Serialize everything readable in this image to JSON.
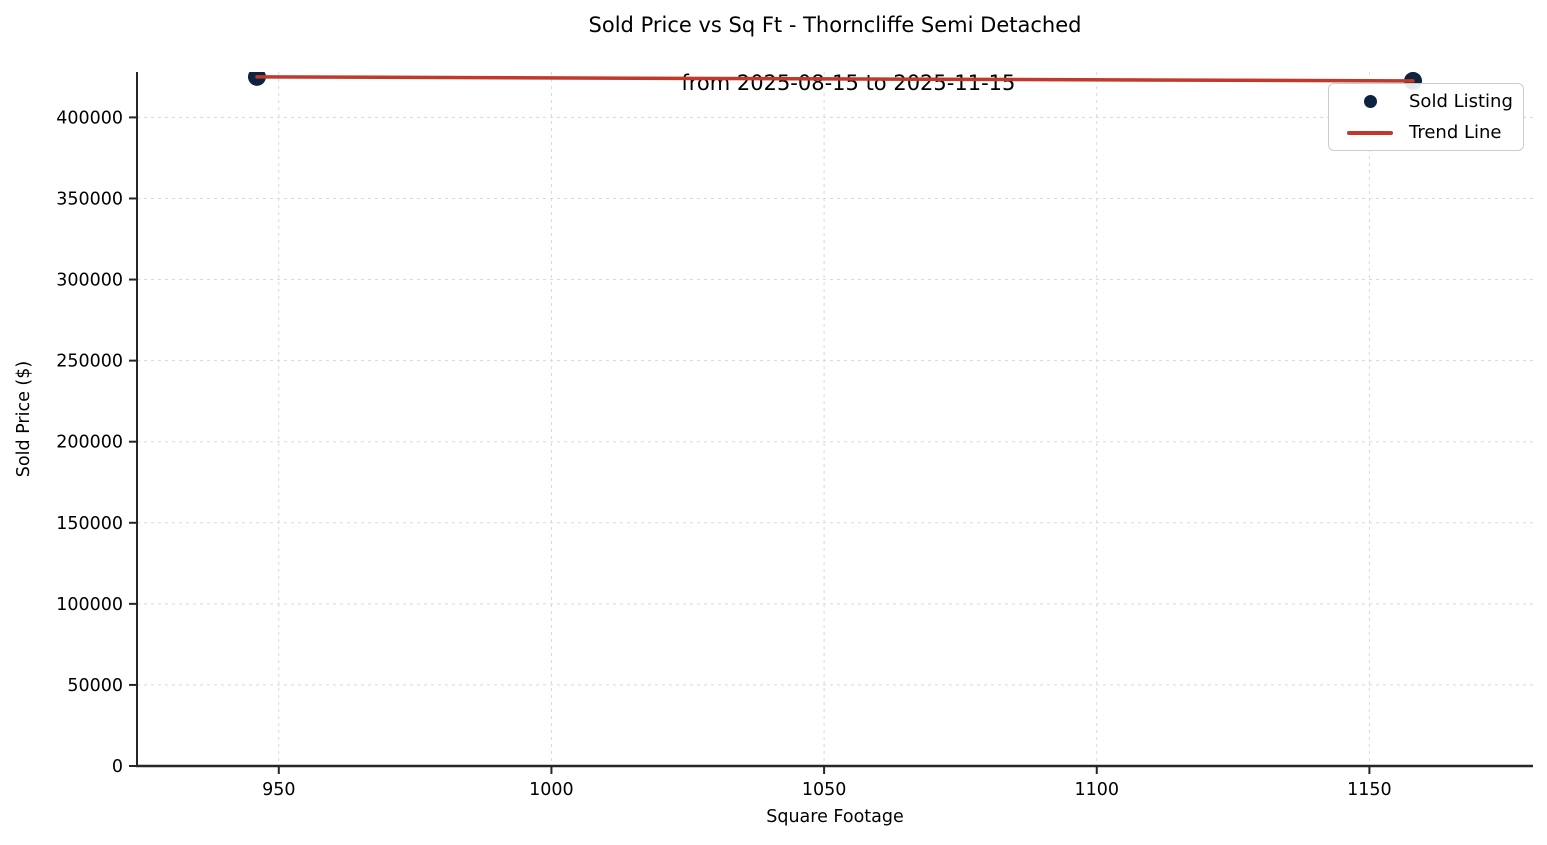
{
  "chart_data": {
    "type": "scatter",
    "title": "Sold Price vs Sq Ft - Thorncliffe Semi Detached",
    "subtitle": "from 2025-08-15 to 2025-11-15",
    "xlabel": "Square Footage",
    "ylabel": "Sold Price ($)",
    "xlim": [
      924,
      1180
    ],
    "ylim": [
      0,
      428000
    ],
    "x_ticks": [
      950,
      1000,
      1050,
      1100,
      1150
    ],
    "y_ticks": [
      0,
      50000,
      100000,
      150000,
      200000,
      250000,
      300000,
      350000,
      400000
    ],
    "grid": "dashed",
    "legend_position": "upper right",
    "series": [
      {
        "name": "Sold Listing",
        "kind": "scatter",
        "color": "#0e2340",
        "points": [
          {
            "x": 946,
            "y": 425000
          },
          {
            "x": 1158,
            "y": 422500
          }
        ]
      },
      {
        "name": "Trend Line",
        "kind": "line",
        "color": "#c0392b",
        "points": [
          {
            "x": 946,
            "y": 425000
          },
          {
            "x": 1158,
            "y": 422500
          }
        ]
      }
    ],
    "colors": {
      "scatter": "#0e2340",
      "trend": "#c0392b",
      "grid": "#d8d8d8",
      "spine": "#262626",
      "text": "#000000",
      "legend_border": "#cccccc",
      "background": "#ffffff"
    }
  }
}
